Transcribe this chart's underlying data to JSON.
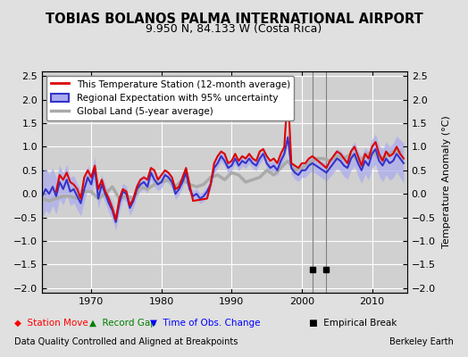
{
  "title": "TOBIAS BOLANOS PALMA INTERNATIONAL AIRPORT",
  "subtitle": "9.950 N, 84.133 W (Costa Rica)",
  "ylabel": "Temperature Anomaly (°C)",
  "footer_left": "Data Quality Controlled and Aligned at Breakpoints",
  "footer_right": "Berkeley Earth",
  "xlim": [
    1963,
    2015
  ],
  "ylim": [
    -2.1,
    2.6
  ],
  "yticks": [
    -2,
    -1.5,
    -1,
    -0.5,
    0,
    0.5,
    1,
    1.5,
    2,
    2.5
  ],
  "xticks": [
    1970,
    1980,
    1990,
    2000,
    2010
  ],
  "bg_color": "#e8e8e8",
  "plot_bg_color": "#d8d8d8",
  "grid_color": "#ffffff",
  "empirical_breaks": [
    2001.5,
    2003.5
  ],
  "vertical_lines": [
    2001.5,
    2003.5
  ],
  "station_data": {
    "years": [
      1965.0,
      1965.5,
      1966.0,
      1966.5,
      1967.0,
      1967.5,
      1968.0,
      1968.5,
      1969.0,
      1969.5,
      1970.0,
      1970.5,
      1971.0,
      1971.5,
      1972.0,
      1972.5,
      1973.0,
      1973.5,
      1974.0,
      1974.5,
      1975.0,
      1975.5,
      1976.0,
      1976.5,
      1977.0,
      1977.5,
      1978.0,
      1978.5,
      1979.0,
      1979.5,
      1980.0,
      1980.5,
      1981.0,
      1981.5,
      1982.0,
      1982.5,
      1983.0,
      1983.5,
      1984.5,
      1986.5,
      1987.0,
      1987.5,
      1988.0,
      1988.5,
      1989.0,
      1989.5,
      1990.0,
      1990.5,
      1991.0,
      1991.5,
      1992.0,
      1992.5,
      1993.0,
      1993.5,
      1994.0,
      1994.5,
      1995.0,
      1995.5,
      1996.0,
      1996.5,
      1997.0,
      1997.5,
      1998.0,
      1998.5,
      1999.0,
      1999.5,
      2000.0,
      2000.5,
      2001.0,
      2001.5,
      2003.5,
      2004.0,
      2004.5,
      2005.0,
      2005.5,
      2006.0,
      2006.5,
      2007.0,
      2007.5,
      2008.0,
      2008.5,
      2009.0,
      2009.5,
      2010.0,
      2010.5,
      2011.0,
      2011.5,
      2012.0,
      2012.5,
      2013.0,
      2013.5,
      2014.0,
      2014.5
    ],
    "values": [
      0.05,
      0.4,
      0.3,
      0.45,
      0.25,
      0.2,
      0.1,
      -0.1,
      0.35,
      0.5,
      0.35,
      0.6,
      0.1,
      0.3,
      0.05,
      -0.1,
      -0.3,
      -0.55,
      -0.1,
      0.1,
      0.05,
      -0.25,
      -0.1,
      0.15,
      0.3,
      0.35,
      0.3,
      0.55,
      0.5,
      0.3,
      0.4,
      0.5,
      0.45,
      0.35,
      0.1,
      0.15,
      0.35,
      0.55,
      -0.15,
      -0.1,
      0.2,
      0.65,
      0.8,
      0.9,
      0.85,
      0.65,
      0.7,
      0.85,
      0.7,
      0.8,
      0.75,
      0.85,
      0.75,
      0.7,
      0.9,
      0.95,
      0.8,
      0.7,
      0.75,
      0.65,
      0.85,
      1.0,
      2.2,
      0.65,
      0.6,
      0.55,
      0.65,
      0.65,
      0.75,
      0.8,
      0.55,
      0.7,
      0.8,
      0.9,
      0.85,
      0.75,
      0.65,
      0.9,
      1.0,
      0.8,
      0.6,
      0.85,
      0.75,
      1.0,
      1.1,
      0.85,
      0.7,
      0.9,
      0.8,
      0.85,
      1.0,
      0.85,
      0.75
    ]
  },
  "regional_data": {
    "years": [
      1963.0,
      1963.5,
      1964.0,
      1964.5,
      1965.0,
      1965.5,
      1966.0,
      1966.5,
      1967.0,
      1967.5,
      1968.0,
      1968.5,
      1969.0,
      1969.5,
      1970.0,
      1970.5,
      1971.0,
      1971.5,
      1972.0,
      1972.5,
      1973.0,
      1973.5,
      1974.0,
      1974.5,
      1975.0,
      1975.5,
      1976.0,
      1976.5,
      1977.0,
      1977.5,
      1978.0,
      1978.5,
      1979.0,
      1979.5,
      1980.0,
      1980.5,
      1981.0,
      1981.5,
      1982.0,
      1982.5,
      1983.0,
      1983.5,
      1984.0,
      1984.5,
      1985.0,
      1985.5,
      1986.0,
      1986.5,
      1987.0,
      1987.5,
      1988.0,
      1988.5,
      1989.0,
      1989.5,
      1990.0,
      1990.5,
      1991.0,
      1991.5,
      1992.0,
      1992.5,
      1993.0,
      1993.5,
      1994.0,
      1994.5,
      1995.0,
      1995.5,
      1996.0,
      1996.5,
      1997.0,
      1997.5,
      1998.0,
      1998.5,
      1999.0,
      1999.5,
      2000.0,
      2000.5,
      2001.0,
      2001.5,
      2003.5,
      2004.0,
      2004.5,
      2005.0,
      2005.5,
      2006.0,
      2006.5,
      2007.0,
      2007.5,
      2008.0,
      2008.5,
      2009.0,
      2009.5,
      2010.0,
      2010.5,
      2011.0,
      2011.5,
      2012.0,
      2012.5,
      2013.0,
      2013.5,
      2014.0,
      2014.5
    ],
    "values": [
      -0.05,
      0.1,
      0.0,
      0.15,
      -0.05,
      0.25,
      0.1,
      0.3,
      0.05,
      0.1,
      -0.05,
      -0.2,
      0.1,
      0.35,
      0.2,
      0.55,
      -0.1,
      0.2,
      0.0,
      -0.2,
      -0.35,
      -0.6,
      -0.2,
      0.05,
      0.0,
      -0.3,
      -0.15,
      0.1,
      0.2,
      0.25,
      0.15,
      0.45,
      0.3,
      0.2,
      0.25,
      0.4,
      0.35,
      0.25,
      0.0,
      0.1,
      0.25,
      0.45,
      0.1,
      -0.05,
      0.0,
      -0.1,
      -0.05,
      0.05,
      0.2,
      0.55,
      0.65,
      0.8,
      0.7,
      0.55,
      0.6,
      0.75,
      0.6,
      0.7,
      0.65,
      0.75,
      0.65,
      0.6,
      0.75,
      0.85,
      0.65,
      0.55,
      0.6,
      0.5,
      0.7,
      0.85,
      1.2,
      0.55,
      0.45,
      0.4,
      0.5,
      0.5,
      0.6,
      0.65,
      0.45,
      0.55,
      0.65,
      0.75,
      0.7,
      0.6,
      0.55,
      0.75,
      0.85,
      0.65,
      0.5,
      0.7,
      0.6,
      0.85,
      0.95,
      0.7,
      0.6,
      0.75,
      0.65,
      0.7,
      0.85,
      0.75,
      0.65
    ],
    "uncertainty": [
      0.5,
      0.45,
      0.42,
      0.4,
      0.38,
      0.36,
      0.34,
      0.32,
      0.3,
      0.29,
      0.28,
      0.27,
      0.26,
      0.25,
      0.24,
      0.23,
      0.22,
      0.21,
      0.2,
      0.19,
      0.19,
      0.18,
      0.18,
      0.17,
      0.17,
      0.16,
      0.16,
      0.15,
      0.15,
      0.15,
      0.14,
      0.14,
      0.14,
      0.13,
      0.13,
      0.13,
      0.13,
      0.12,
      0.12,
      0.12,
      0.12,
      0.11,
      0.11,
      0.11,
      0.11,
      0.11,
      0.11,
      0.11,
      0.11,
      0.11,
      0.11,
      0.11,
      0.11,
      0.11,
      0.11,
      0.11,
      0.11,
      0.11,
      0.11,
      0.11,
      0.11,
      0.11,
      0.11,
      0.11,
      0.11,
      0.11,
      0.11,
      0.11,
      0.12,
      0.12,
      0.13,
      0.13,
      0.14,
      0.14,
      0.15,
      0.15,
      0.16,
      0.17,
      0.18,
      0.19,
      0.2,
      0.21,
      0.22,
      0.23,
      0.24,
      0.25,
      0.26,
      0.27,
      0.28,
      0.29,
      0.3,
      0.31,
      0.32,
      0.33,
      0.34,
      0.35,
      0.36,
      0.37,
      0.38,
      0.4,
      0.42
    ]
  },
  "global_land_data": {
    "years": [
      1963,
      1964,
      1965,
      1966,
      1967,
      1968,
      1969,
      1970,
      1971,
      1972,
      1973,
      1974,
      1975,
      1976,
      1977,
      1978,
      1979,
      1980,
      1981,
      1982,
      1983,
      1984,
      1985,
      1986,
      1987,
      1988,
      1989,
      1990,
      1991,
      1992,
      1993,
      1994,
      1995,
      1996,
      1997,
      1998,
      1999,
      2000,
      2001,
      2002,
      2003,
      2004,
      2005,
      2006,
      2007,
      2008,
      2009,
      2010,
      2011,
      2012,
      2013,
      2014
    ],
    "values": [
      -0.1,
      -0.15,
      -0.1,
      -0.05,
      -0.05,
      -0.1,
      0.05,
      0.05,
      -0.1,
      0.0,
      0.15,
      -0.1,
      -0.05,
      -0.1,
      0.15,
      0.1,
      0.2,
      0.25,
      0.3,
      0.15,
      0.3,
      0.2,
      0.15,
      0.2,
      0.35,
      0.4,
      0.3,
      0.45,
      0.4,
      0.25,
      0.3,
      0.35,
      0.5,
      0.4,
      0.55,
      0.7,
      0.5,
      0.55,
      0.65,
      0.75,
      0.75,
      0.7,
      0.8,
      0.75,
      0.85,
      0.7,
      0.8,
      0.9,
      0.75,
      0.8,
      0.9,
      0.9
    ]
  },
  "station_color": "#dd0000",
  "regional_color": "#3333cc",
  "regional_fill_color": "#aaaaee",
  "global_land_color": "#aaaaaa",
  "legend_box_color": "#ffffff",
  "station_move_x": null,
  "record_gap_x": null,
  "obs_change_x": null
}
